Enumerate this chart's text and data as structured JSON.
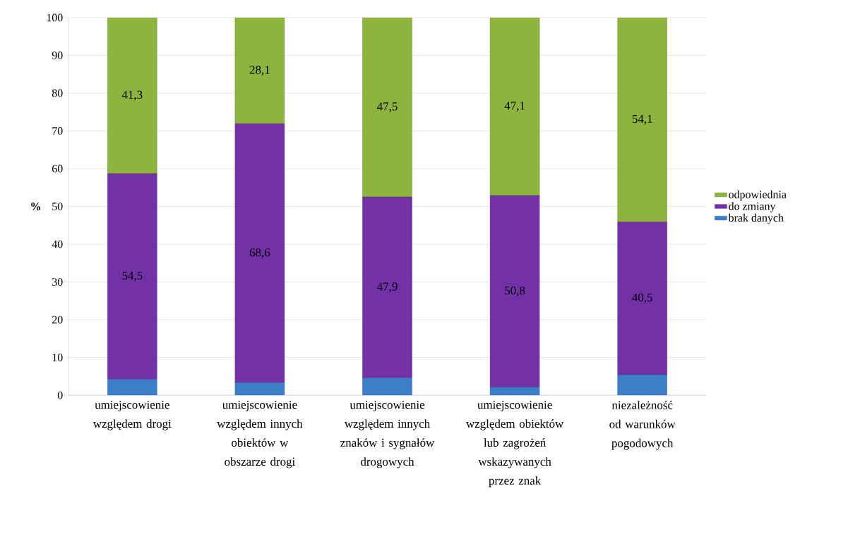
{
  "chart_data": {
    "type": "bar",
    "stacked": true,
    "ylabel": "%",
    "categories": [
      "umiejscowienie względem drogi",
      "umiejscowienie względem innych obiektów w obszarze drogi",
      "umiejscowienie względem innych znaków i sygnałów drogowych",
      "umiejscowienie względem obiektów lub zagrożeń wskazywanych przez znak",
      "niezależność od warunków pogodowych"
    ],
    "series": [
      {
        "name": "brak danych",
        "color": "#3b7fc9",
        "values": [
          4.2,
          3.3,
          4.6,
          2.1,
          5.4
        ]
      },
      {
        "name": "do zmiany",
        "color": "#7331a8",
        "values": [
          54.5,
          68.6,
          47.9,
          50.8,
          40.5
        ],
        "value_labels": [
          "54,5",
          "68,6",
          "47,9",
          "50,8",
          "40,5"
        ]
      },
      {
        "name": "odpowiednia",
        "color": "#8db43c",
        "values": [
          41.3,
          28.1,
          47.5,
          47.1,
          54.1
        ],
        "value_labels": [
          "41,3",
          "28,1",
          "47,5",
          "47,1",
          "54,1"
        ]
      }
    ],
    "ylim": [
      0,
      100
    ],
    "yticks": [
      0,
      10,
      20,
      30,
      40,
      50,
      60,
      70,
      80,
      90,
      100
    ],
    "grid": "y",
    "legend": "right"
  }
}
